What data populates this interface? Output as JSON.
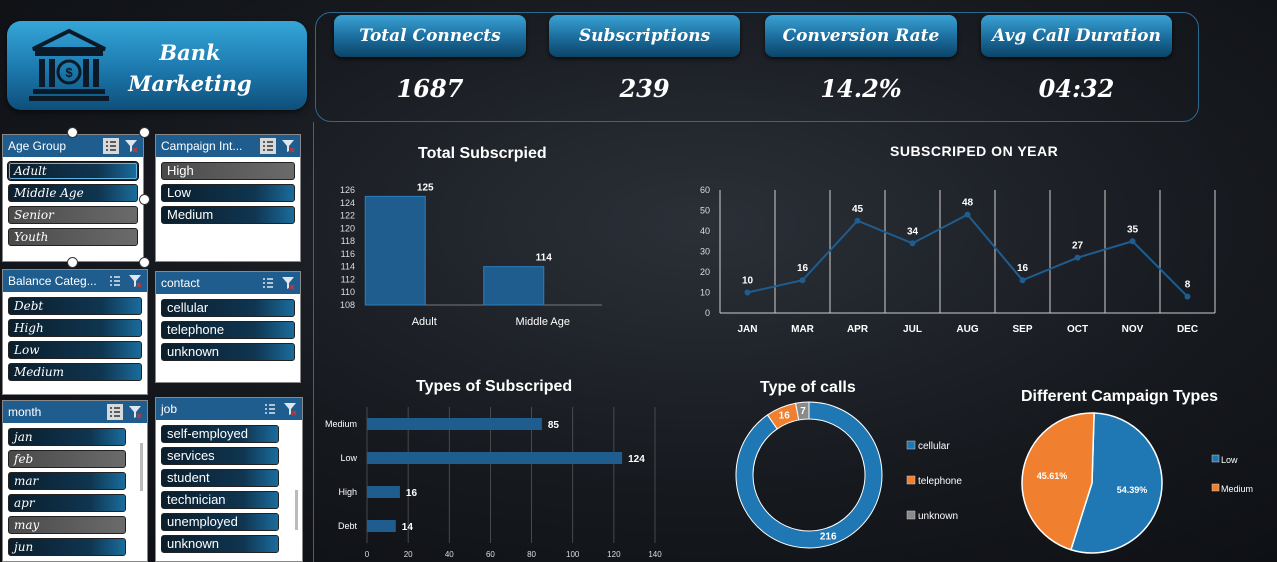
{
  "logo": {
    "line1": "Bank",
    "line2": "Marketing"
  },
  "kpis": [
    {
      "label": "Total Connects",
      "value": "1687"
    },
    {
      "label": "Subscriptions",
      "value": "239"
    },
    {
      "label": "Conversion Rate",
      "value": "14.2%"
    },
    {
      "label": "Avg Call Duration",
      "value": "04:32"
    }
  ],
  "slicers": {
    "age_group": {
      "title": "Age Group",
      "items": [
        "Adult",
        "Middle Age",
        "Senior",
        "Youth"
      ]
    },
    "campaign": {
      "title": "Campaign Int...",
      "items": [
        "High",
        "Low",
        "Medium"
      ]
    },
    "balance": {
      "title": "Balance Categ...",
      "items": [
        "Debt",
        "High",
        "Low",
        "Medium"
      ]
    },
    "contact": {
      "title": "contact",
      "items": [
        "cellular",
        "telephone",
        "unknown"
      ]
    },
    "month": {
      "title": "month",
      "items": [
        "jan",
        "feb",
        "mar",
        "apr",
        "may",
        "jun"
      ]
    },
    "job": {
      "title": "job",
      "items": [
        "self-employed",
        "services",
        "student",
        "technician",
        "unemployed",
        "unknown"
      ]
    }
  },
  "colors": {
    "accent": "#1f77b4",
    "orange": "#f08030",
    "bar": "#1f5d8f",
    "panel_border": "#2b6a8f"
  },
  "chart_data": [
    {
      "type": "bar",
      "title": "Total Subscrpied",
      "categories": [
        "Adult",
        "Middle Age"
      ],
      "values": [
        125,
        114
      ],
      "ylim": [
        108,
        126
      ],
      "yticks": [
        108,
        110,
        112,
        114,
        116,
        118,
        120,
        122,
        124,
        126
      ]
    },
    {
      "type": "line",
      "title": "SUBSCRIPED ON YEAR",
      "categories": [
        "JAN",
        "MAR",
        "APR",
        "JUL",
        "AUG",
        "SEP",
        "OCT",
        "NOV",
        "DEC"
      ],
      "values": [
        10,
        16,
        45,
        34,
        48,
        16,
        27,
        35,
        8
      ],
      "ylim": [
        0,
        60
      ],
      "yticks": [
        0,
        10,
        20,
        30,
        40,
        50,
        60
      ]
    },
    {
      "type": "bar",
      "orientation": "horizontal",
      "title": "Types of Subscriped",
      "categories": [
        "Medium",
        "Low",
        "High",
        "Debt"
      ],
      "values": [
        85,
        124,
        16,
        14
      ],
      "xlim": [
        0,
        140
      ],
      "xticks": [
        0,
        20,
        40,
        60,
        80,
        100,
        120,
        140
      ]
    },
    {
      "type": "pie",
      "variant": "donut",
      "title": "Type of calls",
      "categories": [
        "cellular",
        "telephone",
        "unknown"
      ],
      "values": [
        216,
        16,
        7
      ],
      "colors": [
        "#1f77b4",
        "#f08030",
        "#8a8a8a"
      ]
    },
    {
      "type": "pie",
      "title": "Different Campaign Types",
      "categories": [
        "Low",
        "Medium"
      ],
      "values": [
        54.39,
        45.61
      ],
      "labels": [
        "54.39%",
        "45.61%"
      ],
      "colors": [
        "#1f77b4",
        "#f08030"
      ]
    }
  ]
}
